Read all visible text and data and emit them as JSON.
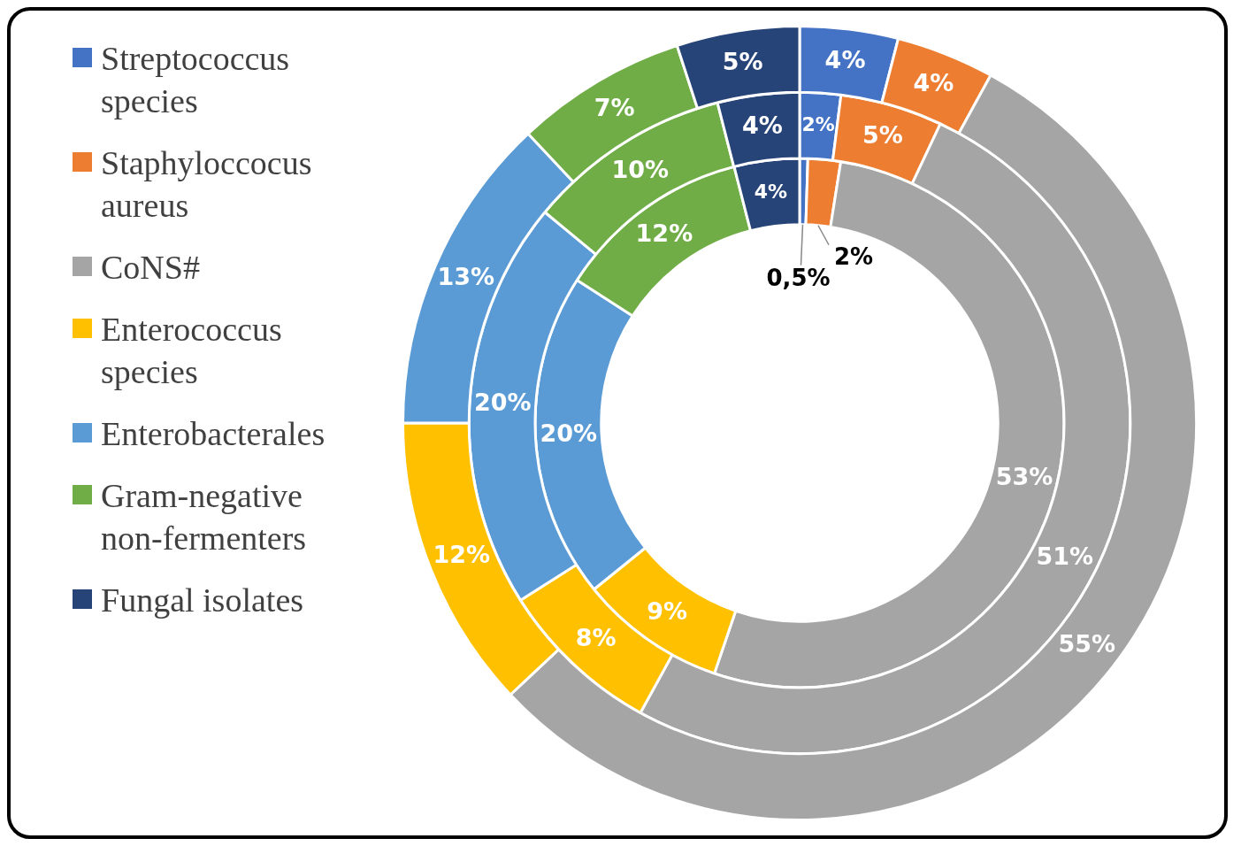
{
  "chart_data": {
    "type": "donut",
    "categories": [
      "Streptococcus species",
      "Staphyloccocus aureus",
      "CoNS#",
      "Enterococcus species",
      "Enterobacterales",
      "Gram-negative non-fermenters",
      "Fungal isolates"
    ],
    "colors": [
      "#4472c4",
      "#ed7d31",
      "#a5a5a5",
      "#ffc000",
      "#5b9bd5",
      "#70ad47",
      "#264478"
    ],
    "series": [
      {
        "values": [
          4,
          4,
          55,
          12,
          13,
          7,
          5
        ],
        "value_labels": [
          "4%",
          "4%",
          "55%",
          "12%",
          "13%",
          "7%",
          "5%"
        ]
      },
      {
        "values": [
          2,
          5,
          51,
          8,
          20,
          10,
          4
        ],
        "value_labels": [
          "2%",
          "5%",
          "51%",
          "8%",
          "20%",
          "10%",
          "4%"
        ]
      },
      {
        "values": [
          0.5,
          2,
          53,
          9,
          20,
          12,
          4
        ],
        "value_labels": [
          "0,5%",
          "2%",
          "53%",
          "9%",
          "20%",
          "12%",
          "4%"
        ]
      }
    ],
    "legend": "left"
  }
}
